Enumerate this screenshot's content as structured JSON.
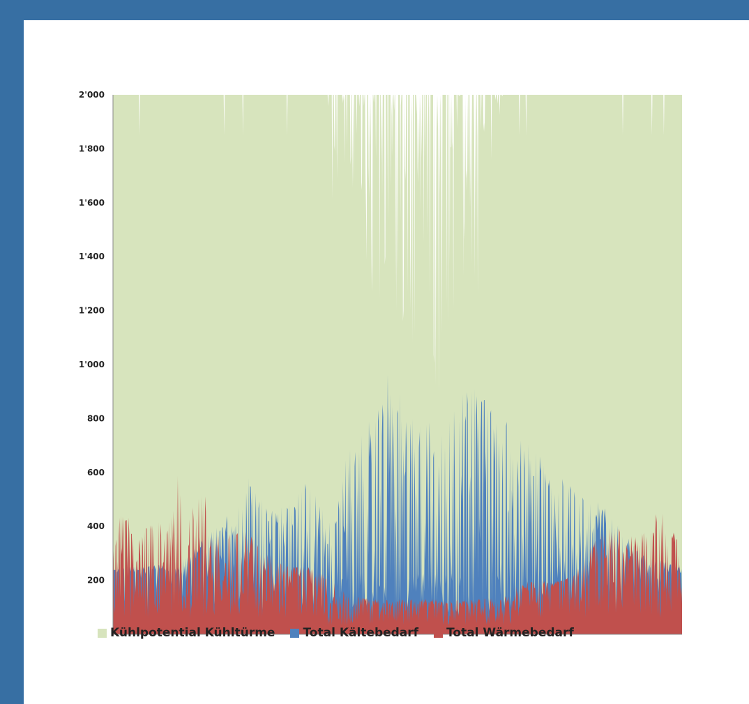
{
  "colors": {
    "frame": "#376fa3",
    "cooling_potential": "#d7e4bd",
    "cooling_demand": "#4f81bd",
    "heating_demand": "#c0504d"
  },
  "chart_data": {
    "type": "area",
    "x_unit": "hour of year (0-8760)",
    "ylim": [
      0,
      2000
    ],
    "y_ticks": [
      {
        "value": 0,
        "label": "0"
      },
      {
        "value": 200,
        "label": "200"
      },
      {
        "value": 400,
        "label": "400"
      },
      {
        "value": 600,
        "label": "600"
      },
      {
        "value": 800,
        "label": "800"
      },
      {
        "value": 1000,
        "label": "1'000"
      },
      {
        "value": 1200,
        "label": "1'200"
      },
      {
        "value": 1400,
        "label": "1'400"
      },
      {
        "value": 1600,
        "label": "1'600"
      },
      {
        "value": 1800,
        "label": "1'800"
      },
      {
        "value": 2000,
        "label": "2'000"
      }
    ],
    "grid": false,
    "legend_position": "bottom",
    "series": [
      {
        "name": "Kühlpotential Kühltürme",
        "color": "#d7e4bd",
        "type": "area",
        "note": "largely clipped at 2'000 except summer gaps",
        "x": [
          0,
          3300,
          3350,
          3800,
          3900,
          4000,
          4100,
          4200,
          4300,
          4400,
          4500,
          4600,
          4700,
          4800,
          4900,
          5000,
          5100,
          5200,
          5300,
          5400,
          5500,
          5600,
          5700,
          5800,
          5900,
          6000,
          8760
        ],
        "values": [
          2000,
          2000,
          1500,
          1700,
          1300,
          1000,
          1150,
          900,
          1500,
          950,
          1200,
          700,
          1350,
          1000,
          1100,
          800,
          1250,
          700,
          1900,
          950,
          1300,
          1100,
          1500,
          1700,
          1800,
          2000,
          2000
        ]
      },
      {
        "name": "Total Kältebedarf",
        "color": "#4f81bd",
        "type": "area",
        "x": [
          0,
          1000,
          1800,
          2100,
          2400,
          2700,
          3000,
          3300,
          3600,
          3900,
          4000,
          4200,
          4300,
          4400,
          4500,
          4700,
          4900,
          5100,
          5300,
          5400,
          5500,
          5700,
          5900,
          6100,
          6300,
          6600,
          6900,
          7200,
          7500,
          7800,
          8100,
          8760
        ],
        "values": [
          250,
          260,
          450,
          590,
          470,
          480,
          610,
          430,
          720,
          880,
          820,
          1000,
          960,
          920,
          840,
          800,
          820,
          860,
          900,
          940,
          960,
          900,
          820,
          780,
          740,
          650,
          590,
          520,
          500,
          420,
          300,
          250
        ]
      },
      {
        "name": "Total Wärmebedarf",
        "color": "#c0504d",
        "type": "area",
        "x": [
          0,
          100,
          400,
          900,
          1000,
          1100,
          1400,
          1700,
          2000,
          2300,
          2600,
          3000,
          3300,
          3600,
          4000,
          4400,
          4800,
          5200,
          5600,
          6000,
          6400,
          6800,
          7100,
          7400,
          7700,
          8000,
          8300,
          8400,
          8500,
          8760
        ],
        "values": [
          430,
          480,
          380,
          450,
          610,
          430,
          530,
          390,
          400,
          330,
          260,
          250,
          220,
          150,
          130,
          130,
          130,
          130,
          130,
          140,
          160,
          180,
          230,
          350,
          420,
          360,
          400,
          480,
          430,
          340
        ]
      }
    ]
  }
}
